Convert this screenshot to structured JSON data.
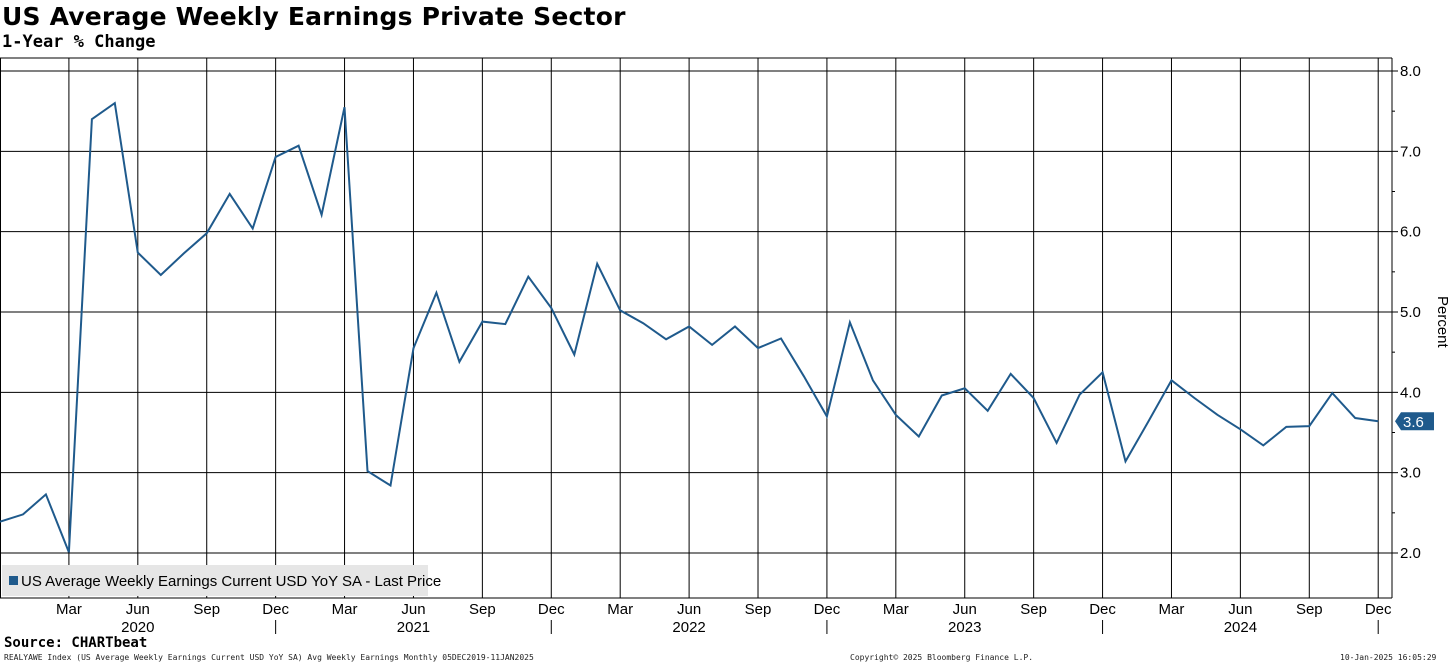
{
  "chart_data": {
    "type": "line",
    "title": "US Average Weekly Earnings Private Sector",
    "subtitle": "1-Year % Change",
    "ylabel": "Percent",
    "ylim": [
      1.5,
      8.1
    ],
    "yticks": [
      "2.0",
      "3.0",
      "4.0",
      "5.0",
      "6.0",
      "7.0",
      "8.0"
    ],
    "grid": true,
    "legend_position": "bottom-left",
    "last_value_label": "3.6",
    "color": "#1f5a8c",
    "x_month_labels": [
      {
        "date": "2020-03",
        "label": "Mar"
      },
      {
        "date": "2020-06",
        "label": "Jun"
      },
      {
        "date": "2020-09",
        "label": "Sep"
      },
      {
        "date": "2020-12",
        "label": "Dec"
      },
      {
        "date": "2021-03",
        "label": "Mar"
      },
      {
        "date": "2021-06",
        "label": "Jun"
      },
      {
        "date": "2021-09",
        "label": "Sep"
      },
      {
        "date": "2021-12",
        "label": "Dec"
      },
      {
        "date": "2022-03",
        "label": "Mar"
      },
      {
        "date": "2022-06",
        "label": "Jun"
      },
      {
        "date": "2022-09",
        "label": "Sep"
      },
      {
        "date": "2022-12",
        "label": "Dec"
      },
      {
        "date": "2023-03",
        "label": "Mar"
      },
      {
        "date": "2023-06",
        "label": "Jun"
      },
      {
        "date": "2023-09",
        "label": "Sep"
      },
      {
        "date": "2023-12",
        "label": "Dec"
      },
      {
        "date": "2024-03",
        "label": "Mar"
      },
      {
        "date": "2024-06",
        "label": "Jun"
      },
      {
        "date": "2024-09",
        "label": "Sep"
      },
      {
        "date": "2024-12",
        "label": "Dec"
      }
    ],
    "x_year_labels": [
      {
        "date": "2020-06",
        "label": "2020"
      },
      {
        "date": "2021-06",
        "label": "2021"
      },
      {
        "date": "2022-06",
        "label": "2022"
      },
      {
        "date": "2023-06",
        "label": "2023"
      },
      {
        "date": "2024-06",
        "label": "2024"
      }
    ],
    "series": [
      {
        "name": "US Average Weekly Earnings Current USD YoY SA - Last Price",
        "x": [
          "2019-12",
          "2020-01",
          "2020-02",
          "2020-03",
          "2020-04",
          "2020-05",
          "2020-06",
          "2020-07",
          "2020-08",
          "2020-09",
          "2020-10",
          "2020-11",
          "2020-12",
          "2021-01",
          "2021-02",
          "2021-03",
          "2021-04",
          "2021-05",
          "2021-06",
          "2021-07",
          "2021-08",
          "2021-09",
          "2021-10",
          "2021-11",
          "2021-12",
          "2022-01",
          "2022-02",
          "2022-03",
          "2022-04",
          "2022-05",
          "2022-06",
          "2022-07",
          "2022-08",
          "2022-09",
          "2022-10",
          "2022-11",
          "2022-12",
          "2023-01",
          "2023-02",
          "2023-03",
          "2023-04",
          "2023-05",
          "2023-06",
          "2023-07",
          "2023-08",
          "2023-09",
          "2023-10",
          "2023-11",
          "2023-12",
          "2024-01",
          "2024-02",
          "2024-03",
          "2024-04",
          "2024-05",
          "2024-06",
          "2024-07",
          "2024-08",
          "2024-09",
          "2024-10",
          "2024-11",
          "2024-12"
        ],
        "values": [
          2.39,
          2.48,
          2.73,
          2.01,
          7.4,
          7.6,
          5.74,
          5.46,
          5.73,
          5.98,
          6.47,
          6.04,
          6.93,
          7.07,
          6.21,
          7.55,
          3.02,
          2.84,
          4.55,
          5.24,
          4.38,
          4.88,
          4.85,
          5.44,
          5.05,
          4.47,
          5.6,
          5.02,
          4.86,
          4.66,
          4.82,
          4.59,
          4.82,
          4.55,
          4.67,
          4.2,
          3.7,
          4.87,
          4.15,
          3.72,
          3.45,
          3.96,
          4.05,
          3.77,
          4.23,
          3.93,
          3.37,
          3.97,
          4.25,
          3.14,
          3.64,
          4.15,
          3.93,
          3.72,
          3.54,
          3.34,
          3.57,
          3.58,
          3.99,
          3.68,
          3.64
        ]
      }
    ]
  },
  "source": "Source: CHARTbeat",
  "footer": {
    "left": "REALYAWE Index (US Average Weekly Earnings Current USD YoY SA) Avg Weekly Earnings  Monthly 05DEC2019-11JAN2025",
    "center": "Copyright© 2025 Bloomberg Finance L.P.",
    "right": "10-Jan-2025 16:05:29"
  }
}
